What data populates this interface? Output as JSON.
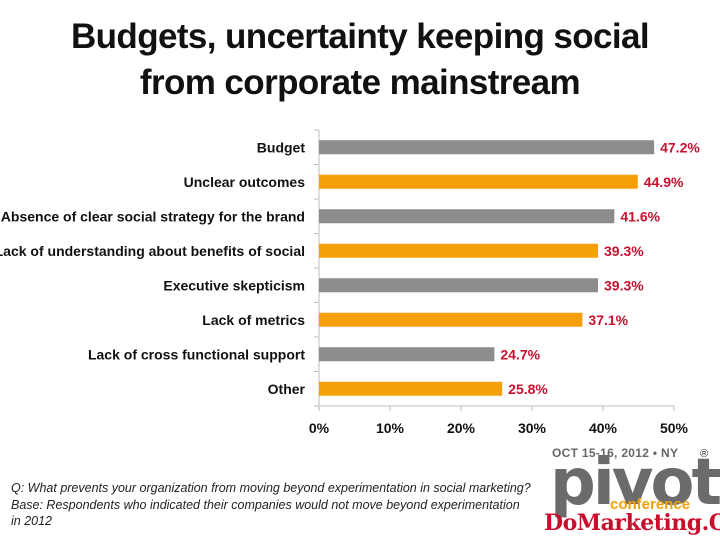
{
  "title_line1": "Budgets, uncertainty keeping social",
  "title_line2": "from corporate mainstream",
  "footnote": "Q: What prevents your organization from moving beyond experimentation in social marketing? Base: Respondents who indicated their companies would not move beyond experimentation in 2012",
  "logo": {
    "date": "OCT 15-16, 2012 • NY",
    "brand": "pivot",
    "sub": "conference",
    "reg": "®",
    "site": "DoMarketing.Org"
  },
  "chart_data": {
    "type": "bar",
    "orientation": "horizontal",
    "categories": [
      "Budget",
      "Unclear outcomes",
      "Absence of clear social strategy for the brand",
      "Lack of understanding about benefits of social",
      "Executive skepticism",
      "Lack of metrics",
      "Lack of cross functional support",
      "Other"
    ],
    "values": [
      47.2,
      44.9,
      41.6,
      39.3,
      39.3,
      37.1,
      24.7,
      25.8
    ],
    "value_labels": [
      "47.2%",
      "44.9%",
      "41.6%",
      "39.3%",
      "39.3%",
      "37.1%",
      "24.7%",
      "25.8%"
    ],
    "xlim": [
      0,
      50
    ],
    "x_ticks": [
      0,
      10,
      20,
      30,
      40,
      50
    ],
    "x_tick_labels": [
      "0%",
      "10%",
      "20%",
      "30%",
      "40%",
      "50%"
    ],
    "bar_colors": [
      "#8c8c8c",
      "#f5a00a",
      "#8c8c8c",
      "#f5a00a",
      "#8c8c8c",
      "#f5a00a",
      "#8c8c8c",
      "#f5a00a"
    ],
    "label_color": "#c8102e",
    "grid": false,
    "legend": "none"
  }
}
